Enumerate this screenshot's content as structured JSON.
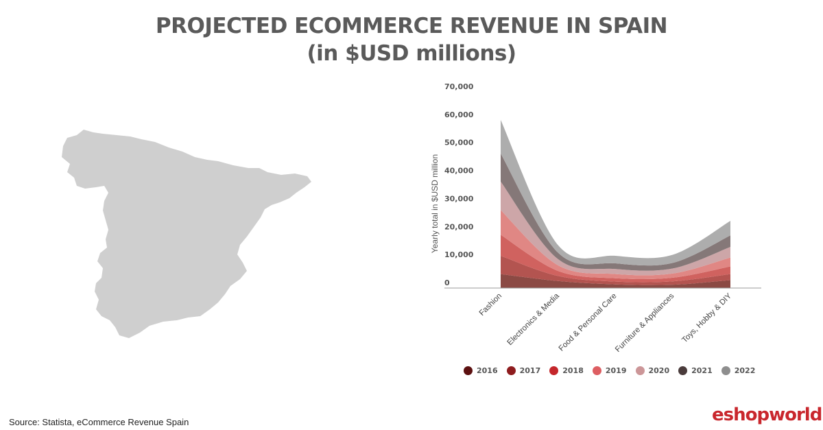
{
  "header": {
    "title_line1": "PROJECTED ECOMMERCE REVENUE IN SPAIN",
    "title_line2": "(in $USD millions)"
  },
  "footer": {
    "source": "Source: Statista, eCommerce Revenue Spain",
    "logo_text": "eshopworld"
  },
  "map": {
    "icon": "spain-map-icon",
    "color": "#cfcfcf"
  },
  "chart_data": {
    "type": "area",
    "stacked": true,
    "title": "PROJECTED ECOMMERCE REVENUE IN SPAIN (in $USD millions)",
    "ylabel": "Yearly total in $USD million",
    "xlabel": "",
    "ylim": [
      0,
      70000
    ],
    "yticks": [
      0,
      10000,
      20000,
      30000,
      40000,
      50000,
      60000,
      70000
    ],
    "ytick_labels": [
      "0",
      "10,000",
      "20,000",
      "30,000",
      "40,000",
      "50,000",
      "60,000",
      "70,000"
    ],
    "categories": [
      "Fashion",
      "Electronics & Media",
      "Food & Personal Care",
      "Furniture & Appliances",
      "Toys, Hobby & DIY"
    ],
    "legend_position": "bottom",
    "series": [
      {
        "name": "2016",
        "color": "#8b4a44",
        "values": [
          5000,
          2500,
          1300,
          1200,
          2800
        ]
      },
      {
        "name": "2017",
        "color": "#b35450",
        "values": [
          6500,
          1800,
          1000,
          1200,
          2200
        ]
      },
      {
        "name": "2018",
        "color": "#d0625f",
        "values": [
          7500,
          1800,
          1200,
          1300,
          2700
        ]
      },
      {
        "name": "2019",
        "color": "#e08784",
        "values": [
          8800,
          2000,
          1500,
          1500,
          3200
        ]
      },
      {
        "name": "2020",
        "color": "#cda6a8",
        "values": [
          10200,
          2200,
          1800,
          1800,
          3800
        ]
      },
      {
        "name": "2021",
        "color": "#857878",
        "values": [
          10000,
          2300,
          2000,
          2000,
          4100
        ]
      },
      {
        "name": "2022",
        "color": "#adadad",
        "values": [
          12000,
          2700,
          2700,
          2900,
          5200
        ]
      }
    ],
    "legend_dot_colors": [
      "#5c1010",
      "#8e1c1e",
      "#c4262b",
      "#dd5e62",
      "#cc9698",
      "#4a3c3c",
      "#8e8e8e"
    ]
  }
}
